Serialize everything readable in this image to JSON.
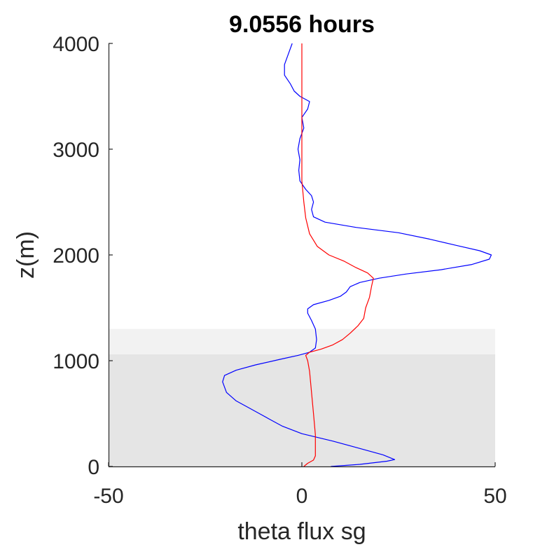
{
  "chart_data": {
    "type": "line",
    "title": "9.0556 hours",
    "xlabel": "theta flux sg",
    "ylabel": "z(m)",
    "xlim": [
      -50,
      50
    ],
    "ylim": [
      0,
      4000
    ],
    "xticks": [
      -50,
      0,
      50
    ],
    "yticks": [
      0,
      1000,
      2000,
      3000,
      4000
    ],
    "grid": false,
    "shaded_regions": [
      {
        "y_range": [
          0,
          1060
        ],
        "color": "#e5e5e5"
      },
      {
        "y_range": [
          1060,
          1300
        ],
        "color": "#f2f2f2"
      }
    ],
    "series": [
      {
        "color": "#0000ff",
        "points": [
          [
            7.5,
            0
          ],
          [
            15,
            20
          ],
          [
            22,
            50
          ],
          [
            24,
            65
          ],
          [
            21,
            110
          ],
          [
            14,
            180
          ],
          [
            8,
            240
          ],
          [
            0,
            310
          ],
          [
            -5,
            380
          ],
          [
            -8,
            440
          ],
          [
            -11,
            500
          ],
          [
            -14,
            560
          ],
          [
            -17,
            620
          ],
          [
            -19.5,
            700
          ],
          [
            -20.5,
            800
          ],
          [
            -20,
            860
          ],
          [
            -17,
            910
          ],
          [
            -12,
            960
          ],
          [
            -6,
            1010
          ],
          [
            -1,
            1050
          ],
          [
            2,
            1080
          ],
          [
            3.5,
            1120
          ],
          [
            3.8,
            1200
          ],
          [
            3.5,
            1300
          ],
          [
            2.5,
            1380
          ],
          [
            1.5,
            1450
          ],
          [
            1.5,
            1490
          ],
          [
            3,
            1530
          ],
          [
            7,
            1570
          ],
          [
            10,
            1610
          ],
          [
            11.5,
            1650
          ],
          [
            12.5,
            1700
          ],
          [
            15,
            1740
          ],
          [
            20,
            1780
          ],
          [
            27,
            1820
          ],
          [
            36,
            1860
          ],
          [
            44,
            1910
          ],
          [
            48.5,
            1960
          ],
          [
            49,
            2000
          ],
          [
            46,
            2040
          ],
          [
            40,
            2090
          ],
          [
            33,
            2150
          ],
          [
            25,
            2210
          ],
          [
            14,
            2260
          ],
          [
            6,
            2310
          ],
          [
            3,
            2360
          ],
          [
            2.5,
            2430
          ],
          [
            3,
            2500
          ],
          [
            2.5,
            2560
          ],
          [
            1,
            2620
          ],
          [
            -0.5,
            2700
          ],
          [
            -0.8,
            2800
          ],
          [
            -0.5,
            2900
          ],
          [
            -1,
            3000
          ],
          [
            -0.5,
            3100
          ],
          [
            0.5,
            3200
          ],
          [
            0,
            3300
          ],
          [
            1.5,
            3380
          ],
          [
            2,
            3450
          ],
          [
            -0.5,
            3500
          ],
          [
            -2,
            3550
          ],
          [
            -3,
            3620
          ],
          [
            -4.5,
            3700
          ],
          [
            -4.5,
            3800
          ],
          [
            -3.5,
            3900
          ],
          [
            -2.5,
            4000
          ]
        ]
      },
      {
        "color": "#ff0000",
        "points": [
          [
            0.5,
            0
          ],
          [
            1.5,
            30
          ],
          [
            3,
            60
          ],
          [
            3.5,
            100
          ],
          [
            3.5,
            300
          ],
          [
            3,
            500
          ],
          [
            2.5,
            700
          ],
          [
            2,
            900
          ],
          [
            1.5,
            1000
          ],
          [
            1,
            1050
          ],
          [
            2,
            1080
          ],
          [
            5,
            1110
          ],
          [
            8,
            1150
          ],
          [
            10.5,
            1200
          ],
          [
            12.5,
            1260
          ],
          [
            14.5,
            1330
          ],
          [
            16,
            1400
          ],
          [
            16.5,
            1500
          ],
          [
            17.5,
            1600
          ],
          [
            18,
            1700
          ],
          [
            18.5,
            1780
          ],
          [
            17,
            1830
          ],
          [
            14,
            1880
          ],
          [
            11,
            1940
          ],
          [
            7,
            2000
          ],
          [
            4,
            2080
          ],
          [
            2,
            2200
          ],
          [
            1,
            2350
          ],
          [
            0.5,
            2500
          ],
          [
            0,
            2700
          ],
          [
            0,
            4000
          ]
        ]
      }
    ]
  }
}
